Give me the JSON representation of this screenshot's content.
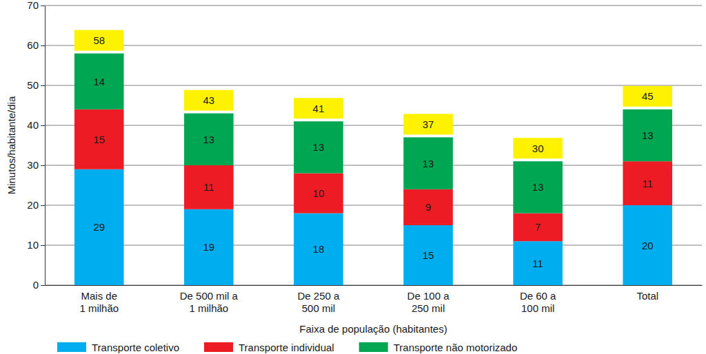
{
  "chart_data": {
    "type": "bar",
    "stacked": true,
    "data_labels": true,
    "grid": true,
    "legend": "bottom",
    "x_label": "Faixa de população (habitantes)",
    "y_label": "Minutos/habitante/dia",
    "categories": [
      "Mais de\n1 milhão",
      "De 500 mil a\n1 milhão",
      "De 250 a\n500 mil",
      "De 100 a\n250 mil",
      "De 60 a\n100 mil",
      "Total"
    ],
    "series": [
      {
        "name": "Transporte coletivo",
        "color": "#00aeef",
        "values": [
          29,
          19,
          18,
          15,
          11,
          20
        ]
      },
      {
        "name": "Transporte individual",
        "color": "#ed1c24",
        "values": [
          15,
          11,
          10,
          9,
          7,
          11
        ]
      },
      {
        "name": "Transporte não motorizado",
        "color": "#00a651",
        "values": [
          14,
          13,
          13,
          13,
          13,
          13
        ]
      }
    ],
    "totals": [
      58,
      43,
      41,
      37,
      30,
      45
    ],
    "ylim": [
      0,
      70
    ],
    "yticks": [
      0,
      10,
      20,
      30,
      40,
      50,
      60,
      70
    ]
  }
}
